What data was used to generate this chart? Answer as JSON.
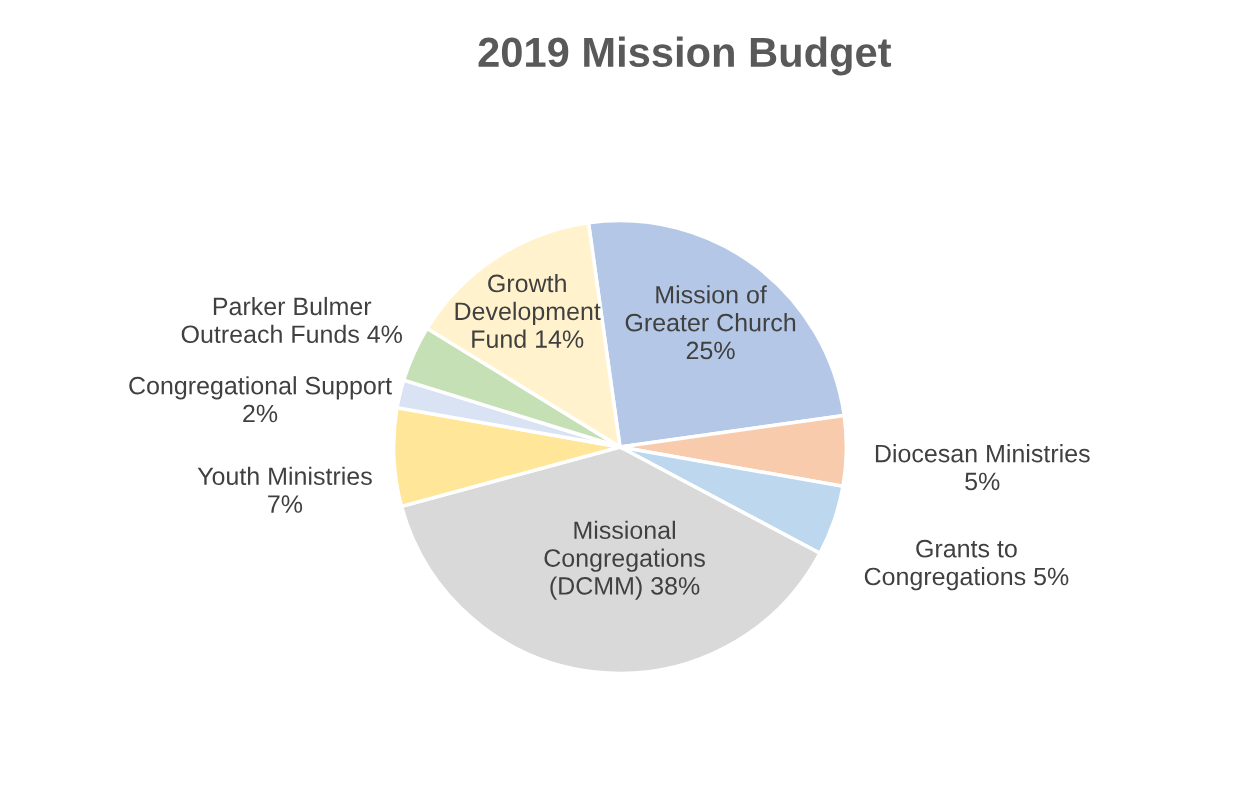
{
  "chart_data": {
    "type": "pie",
    "title": "2019 Mission Budget",
    "categories": [
      "Mission of Greater Church",
      "Diocesan Ministries",
      "Grants to Congregations",
      "Missional Congregations (DCMM)",
      "Youth Ministries",
      "Congregational Support",
      "Parker Bulmer Outreach Funds",
      "Growth Development Fund"
    ],
    "values": [
      25,
      5,
      5,
      38,
      7,
      2,
      4,
      14
    ],
    "colors": [
      "#b4c7e7",
      "#f8cbad",
      "#bdd7ee",
      "#d9d9d9",
      "#ffe699",
      "#dae3f3",
      "#c5e0b4",
      "#fff2cc"
    ],
    "value_labels": [
      "25%",
      "5%",
      "5%",
      "38%",
      "7%",
      "2%",
      "4%",
      "14%"
    ],
    "legend": false
  }
}
